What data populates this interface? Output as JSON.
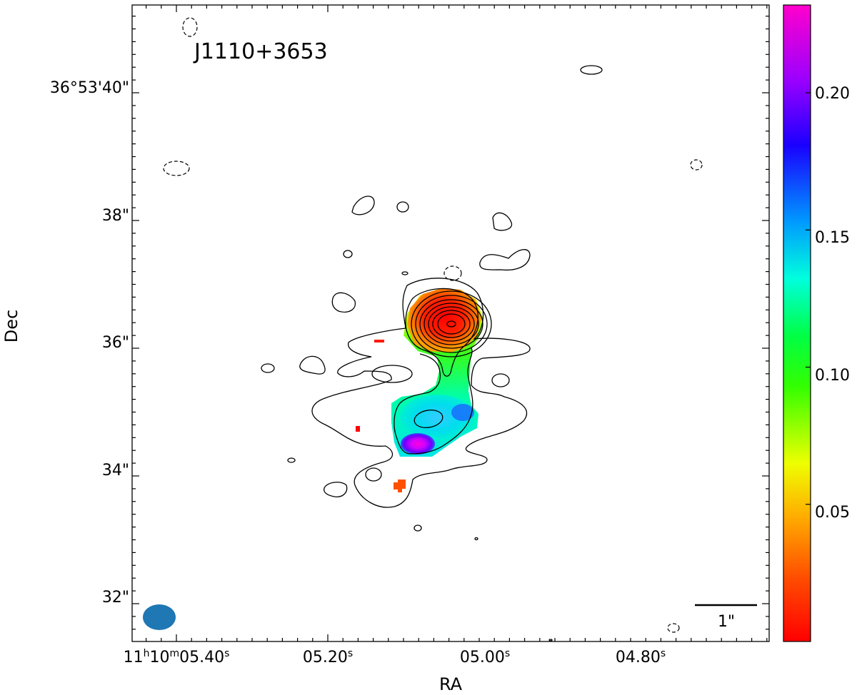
{
  "chart_data": {
    "type": "heatmap",
    "title": "J1110+3653",
    "xlabel": "RA",
    "ylabel": "Dec",
    "x_ticks": [
      {
        "label": "11h10m05.40s",
        "ra_sec": 5.4
      },
      {
        "label": "05.20s",
        "ra_sec": 5.2
      },
      {
        "label": "05.00s",
        "ra_sec": 5.0
      },
      {
        "label": "04.80s",
        "ra_sec": 4.8
      }
    ],
    "y_ticks": [
      {
        "label": "36°53'40\"",
        "dec_arcsec": 40
      },
      {
        "label": "38\"",
        "dec_arcsec": 38
      },
      {
        "label": "36\"",
        "dec_arcsec": 36
      },
      {
        "label": "34\"",
        "dec_arcsec": 34
      },
      {
        "label": "32\"",
        "dec_arcsec": 32
      }
    ],
    "xlim_ra_sec": [
      5.4,
      4.74
    ],
    "ylim_dec_arcsec": [
      31.4,
      41.4
    ],
    "colorbar": {
      "colormap": "gist_rainbow_r",
      "range": [
        0.0,
        0.232
      ],
      "ticks": [
        0.05,
        0.1,
        0.15,
        0.2
      ],
      "tick_labels": [
        "0.05",
        "0.10",
        "0.15",
        "0.20"
      ]
    },
    "scale_bar_label": "1\"",
    "core": {
      "ra_sec": 5.03,
      "dec_arcsec": 36.25,
      "value": 0.0
    },
    "hotspot": {
      "ra_sec": 5.09,
      "dec_arcsec": 34.4,
      "value": 0.22
    },
    "beam": {
      "ra_sec": 5.41,
      "dec_arcsec": 31.65,
      "major_arcsec": 0.5,
      "minor_arcsec": 0.4
    }
  }
}
